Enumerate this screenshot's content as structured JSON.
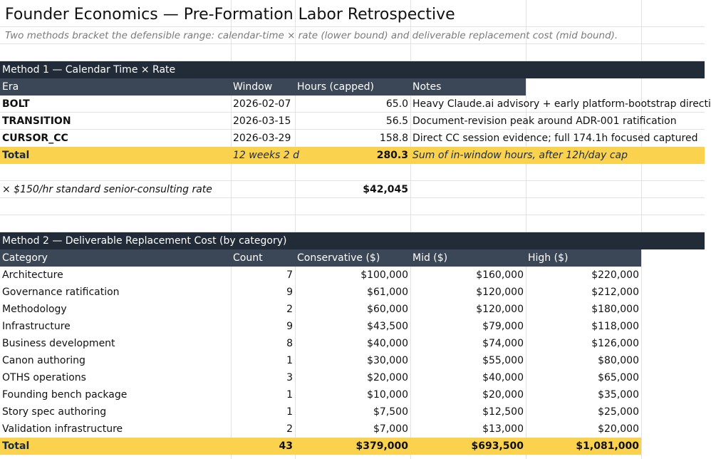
{
  "title": "Founder Economics — Pre-Formation Labor Retrospective",
  "subtitle": "Two methods bracket the defensible range: calendar-time × rate (lower bound) and deliverable replacement cost (mid bound).",
  "method1": {
    "heading": "Method 1 — Calendar Time × Rate",
    "columns": [
      "Era",
      "Window",
      "Hours (capped)",
      "Notes"
    ],
    "rows": [
      {
        "era": "BOLT",
        "window": "2026-02-07",
        "hours": "65.0",
        "notes": "Heavy Claude.ai advisory + early platform-bootstrap directi"
      },
      {
        "era": "TRANSITION",
        "window": "2026-03-15",
        "hours": "56.5",
        "notes": "Document-revision peak around ADR-001 ratification"
      },
      {
        "era": "CURSOR_CC",
        "window": "2026-03-29",
        "hours": "158.8",
        "notes": "Direct CC session evidence; full 174.1h focused captured"
      }
    ],
    "total": {
      "label": "Total",
      "window": "12 weeks 2 d",
      "hours": "280.3",
      "notes": "Sum of in-window hours, after 12h/day cap"
    },
    "rate_label": "× $150/hr standard senior-consulting rate",
    "rate_value": "$42,045"
  },
  "method2": {
    "heading": "Method 2 — Deliverable Replacement Cost (by category)",
    "columns": [
      "Category",
      "Count",
      "Conservative ($)",
      "Mid ($)",
      "High ($)"
    ],
    "rows": [
      {
        "category": "Architecture",
        "count": "7",
        "conservative": "$100,000",
        "mid": "$160,000",
        "high": "$220,000"
      },
      {
        "category": "Governance ratification",
        "count": "9",
        "conservative": "$61,000",
        "mid": "$120,000",
        "high": "$212,000"
      },
      {
        "category": "Methodology",
        "count": "2",
        "conservative": "$60,000",
        "mid": "$120,000",
        "high": "$180,000"
      },
      {
        "category": "Infrastructure",
        "count": "9",
        "conservative": "$43,500",
        "mid": "$79,000",
        "high": "$118,000"
      },
      {
        "category": "Business development",
        "count": "8",
        "conservative": "$40,000",
        "mid": "$74,000",
        "high": "$126,000"
      },
      {
        "category": "Canon authoring",
        "count": "1",
        "conservative": "$30,000",
        "mid": "$55,000",
        "high": "$80,000"
      },
      {
        "category": "OTHS operations",
        "count": "3",
        "conservative": "$20,000",
        "mid": "$40,000",
        "high": "$65,000"
      },
      {
        "category": "Founding bench package",
        "count": "1",
        "conservative": "$10,000",
        "mid": "$20,000",
        "high": "$35,000"
      },
      {
        "category": "Story spec authoring",
        "count": "1",
        "conservative": "$7,500",
        "mid": "$12,500",
        "high": "$25,000"
      },
      {
        "category": "Validation infrastructure",
        "count": "2",
        "conservative": "$7,000",
        "mid": "$13,000",
        "high": "$20,000"
      }
    ],
    "total": {
      "label": "Total",
      "count": "43",
      "conservative": "$379,000",
      "mid": "$693,500",
      "high": "$1,081,000"
    }
  },
  "colors": {
    "band": "#222b38",
    "header": "#3b4657",
    "total": "#fbd24e"
  }
}
